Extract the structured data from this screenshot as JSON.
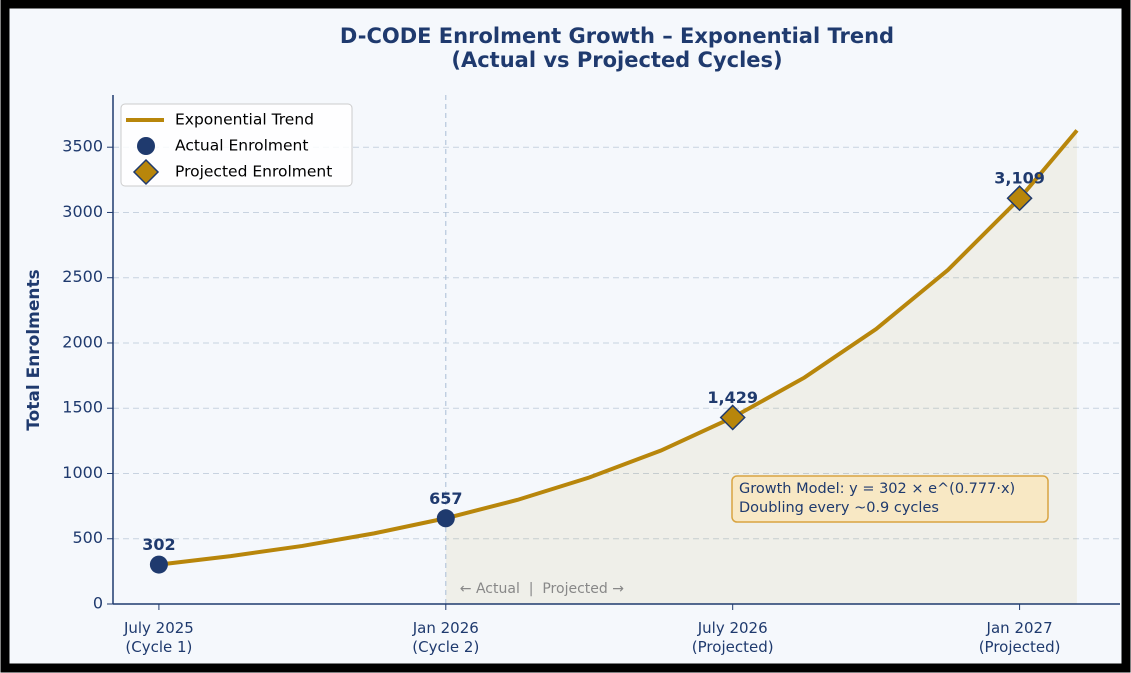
{
  "chart_data": {
    "type": "line",
    "title": "D-CODE Enrolment Growth – Exponential Trend\n(Actual vs Projected Cycles)",
    "ylabel": "Total Enrolments",
    "xlim": [
      -0.16,
      3.35
    ],
    "ylim": [
      0,
      3900
    ],
    "xticks": [
      {
        "value": 0,
        "label": "July 2025\n(Cycle 1)"
      },
      {
        "value": 1,
        "label": "Jan 2026\n(Cycle 2)"
      },
      {
        "value": 2,
        "label": "July 2026\n(Projected)"
      },
      {
        "value": 3,
        "label": "Jan 2027\n(Projected)"
      }
    ],
    "yticks": [
      0,
      500,
      1000,
      1500,
      2000,
      2500,
      3000,
      3500
    ],
    "grid": true,
    "legend": "upper left",
    "divider_x": 1,
    "series": [
      {
        "name": "Exponential Trend",
        "color": "#b8860b",
        "kind": "line",
        "x": [
          0,
          0.25,
          0.5,
          0.75,
          1,
          1.25,
          1.5,
          1.75,
          2,
          2.25,
          2.5,
          2.75,
          3,
          3.2
        ],
        "values": [
          302,
          367,
          445,
          541,
          657,
          798,
          969,
          1176,
          1429,
          1735,
          2107,
          2559,
          3107,
          3629
        ]
      },
      {
        "name": "Actual Enrolment",
        "color": "#1f3a6e",
        "kind": "circle",
        "x": [
          0,
          1
        ],
        "values": [
          302,
          657
        ],
        "value_labels": [
          "302",
          "657"
        ]
      },
      {
        "name": "Projected Enrolment",
        "color": "#b8860b",
        "kind": "diamond",
        "x": [
          2,
          3
        ],
        "values": [
          1429,
          3109
        ],
        "value_labels": [
          "1,429",
          "3,109"
        ]
      }
    ],
    "annotations": {
      "divider": "← Actual  |  Projected →",
      "model": [
        "Growth Model: y = 302 × e^(0.777·x)",
        "Doubling every ~0.9 cycles"
      ]
    }
  }
}
